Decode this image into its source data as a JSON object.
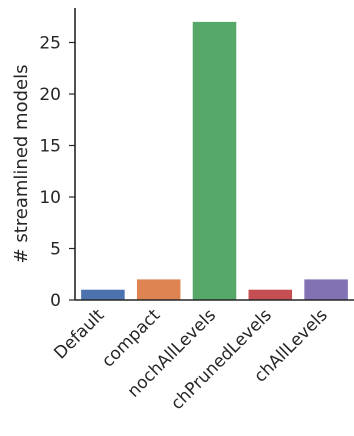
{
  "chart_data": {
    "type": "bar",
    "title": "",
    "xlabel": "",
    "ylabel": "# streamlined models",
    "categories": [
      "Default",
      "compact",
      "nochAllLevels",
      "chPrunedLevels",
      "chAllLevels"
    ],
    "values": [
      1,
      2,
      27,
      1,
      2
    ],
    "colors": [
      "#4c72b0",
      "#dd8452",
      "#55a868",
      "#c44e52",
      "#8172b3"
    ],
    "ylim": [
      0,
      28.35
    ],
    "yticks": [
      0,
      5,
      10,
      15,
      20,
      25
    ],
    "grid": false,
    "legend": "none"
  }
}
